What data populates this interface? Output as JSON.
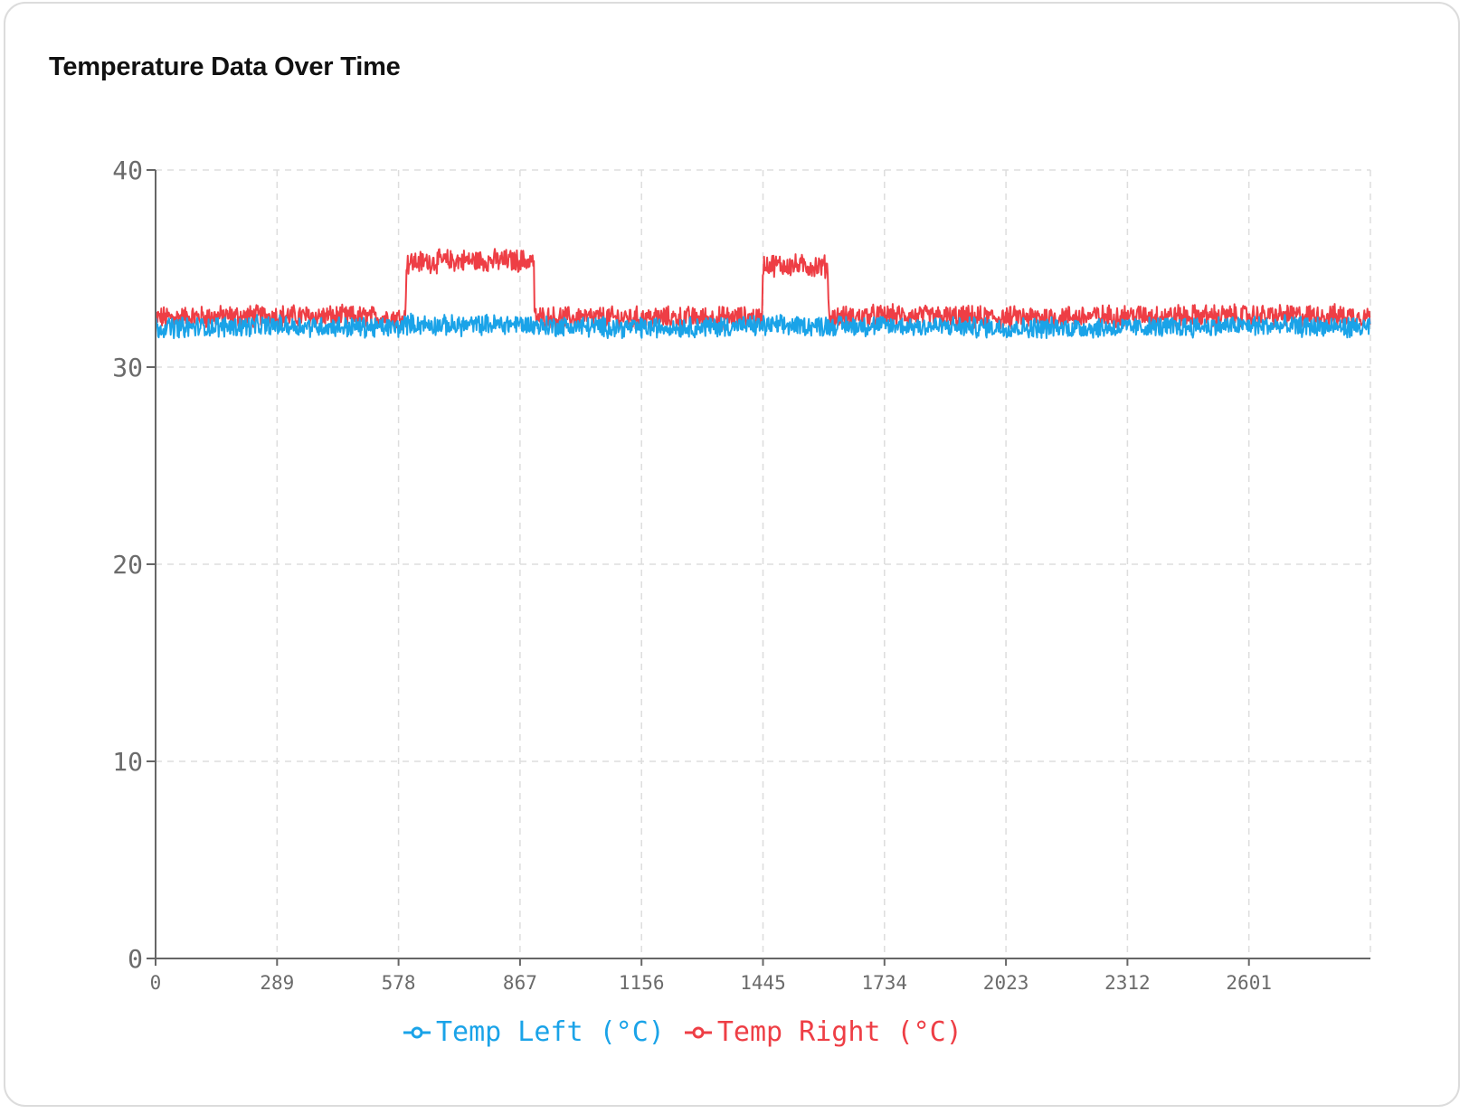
{
  "chart_data": {
    "type": "line",
    "title": "Temperature Data Over Time",
    "xlabel": "",
    "ylabel": "",
    "xlim": [
      0,
      2890
    ],
    "ylim": [
      0,
      40
    ],
    "x_ticks": [
      0,
      289,
      578,
      867,
      1156,
      1445,
      1734,
      2023,
      2312,
      2601
    ],
    "y_ticks": [
      0,
      10,
      20,
      30,
      40
    ],
    "grid": true,
    "legend_position": "bottom",
    "colors": {
      "temp_left": "#1aa3e8",
      "temp_right": "#ee3e45",
      "grid": "#dddddd",
      "axis": "#666666"
    },
    "series": [
      {
        "name": "Temp Left (°C)",
        "x": [
          0,
          289,
          578,
          595,
          700,
          867,
          900,
          1156,
          1445,
          1600,
          1734,
          2023,
          2312,
          2601,
          2890
        ],
        "values": [
          32.0,
          32.1,
          32.0,
          32.2,
          32.1,
          32.2,
          32.1,
          32.0,
          32.1,
          32.1,
          32.1,
          32.0,
          32.0,
          32.1,
          32.0
        ],
        "noise": 0.45
      },
      {
        "name": "Temp Right (°C)",
        "x": [
          0,
          289,
          595,
          596,
          700,
          900,
          901,
          1156,
          1443,
          1444,
          1600,
          1601,
          1734,
          2023,
          2312,
          2601,
          2890
        ],
        "values": [
          32.5,
          32.6,
          32.5,
          35.3,
          35.4,
          35.4,
          32.5,
          32.5,
          32.5,
          35.2,
          35.1,
          32.5,
          32.6,
          32.5,
          32.6,
          32.6,
          32.6
        ],
        "noise": 0.5
      }
    ]
  }
}
